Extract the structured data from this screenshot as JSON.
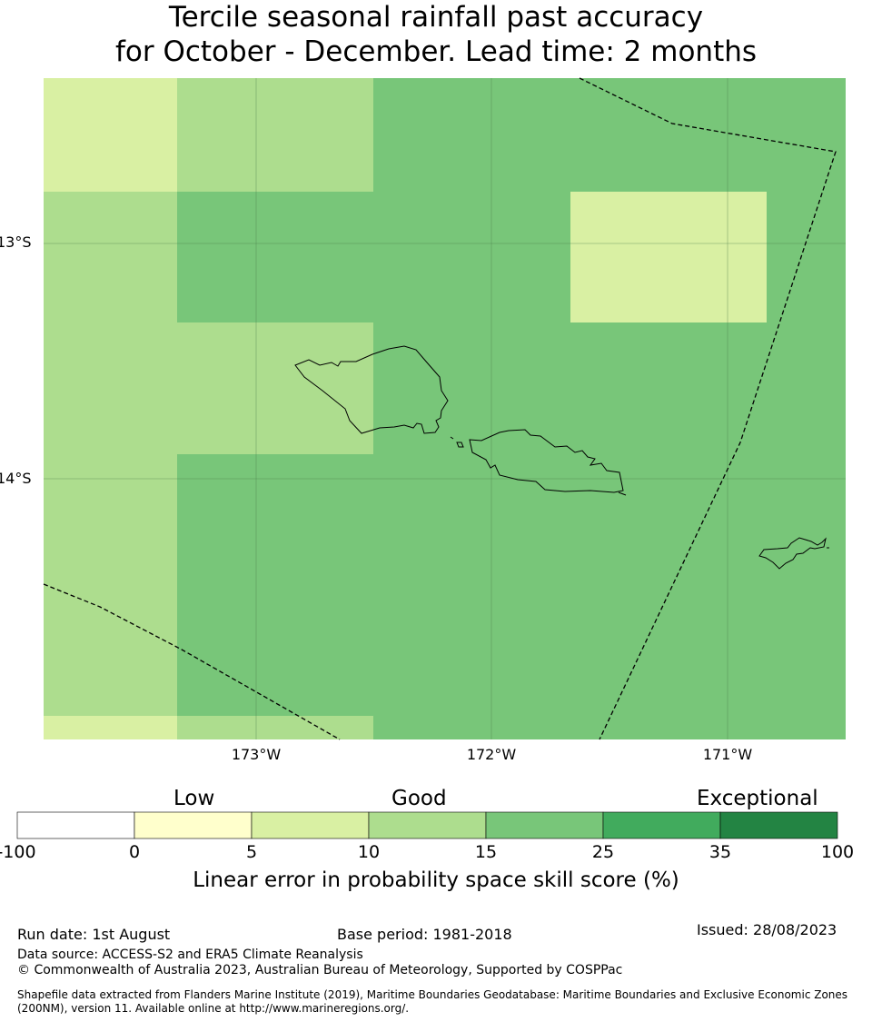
{
  "title": {
    "line1": "Tercile seasonal rainfall past accuracy",
    "line2": "for October - December. Lead time: 2 months"
  },
  "map": {
    "lat_labels": [
      "13°S",
      "14°S"
    ],
    "lon_labels": [
      "173°W",
      "172°W",
      "171°W"
    ],
    "boundary_line_style": "dashed",
    "gridlines": true
  },
  "colorbar": {
    "categories": [
      "Low",
      "Good",
      "Exceptional"
    ],
    "ticks": [
      "-100",
      "0",
      "5",
      "10",
      "15",
      "25",
      "35",
      "100"
    ],
    "colors": [
      "#ffffff",
      "#ffffcc",
      "#d9f0a3",
      "#addd8e",
      "#78c679",
      "#41ab5d",
      "#238443"
    ],
    "label": "Linear error in probability space skill score (%)"
  },
  "footer": {
    "run_date": "Run date: 1st August",
    "base_period": "Base period: 1981-2018",
    "issued": "Issued: 28/08/2023",
    "data_source": "Data source: ACCESS-S2 and ERA5 Climate Reanalysis",
    "copyright": "© Commonwealth of Australia 2023, Australian Bureau of Meteorology, Supported by COSPPac",
    "shapefile": "Shapefile data extracted from Flanders Marine Institute (2019), Maritime Boundaries Geodatabase: Maritime Boundaries and Exclusive Economic Zones (200NM), version 11. Available online at http://www.marineregions.org/."
  }
}
